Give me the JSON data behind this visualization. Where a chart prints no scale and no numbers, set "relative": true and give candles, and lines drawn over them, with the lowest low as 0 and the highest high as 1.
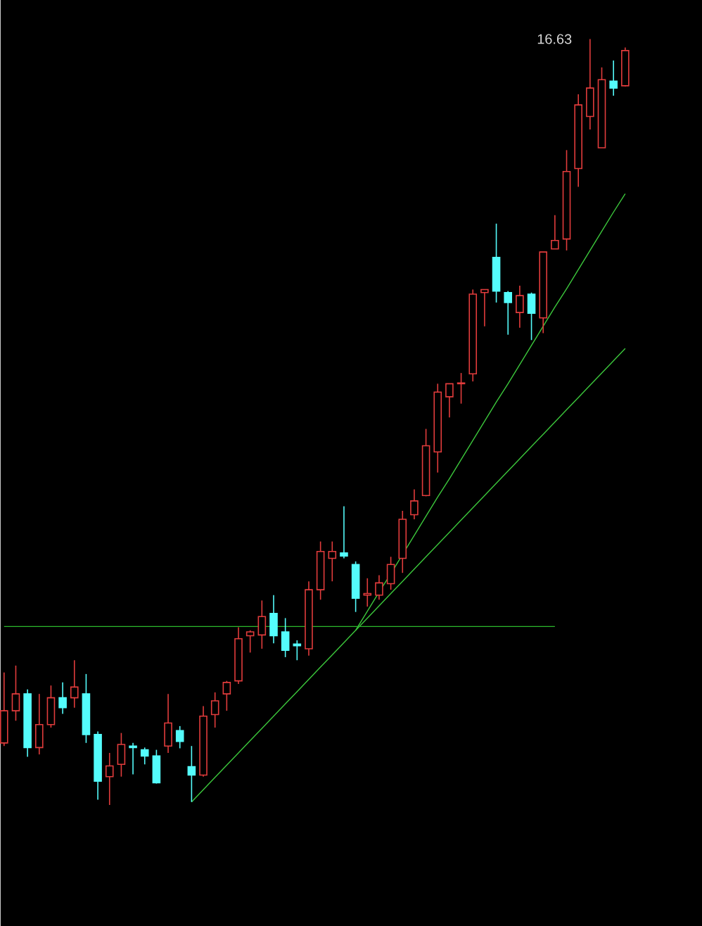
{
  "chart_data": {
    "type": "candlestick",
    "relative": true,
    "categories": [
      null,
      null,
      null,
      null,
      null,
      null,
      null,
      null,
      null,
      null,
      null,
      null,
      null,
      null,
      null,
      null,
      null,
      null,
      null,
      null,
      null,
      null,
      null,
      null,
      null,
      null,
      null,
      null,
      null,
      null,
      null,
      null,
      null,
      null,
      null,
      null,
      null,
      null,
      null,
      null,
      null,
      null,
      null,
      null,
      null,
      null,
      null,
      null,
      null,
      null,
      null,
      null,
      null,
      null
    ],
    "ohlc": [
      [
        0.081,
        0.173,
        0.077,
        0.123
      ],
      [
        0.123,
        0.182,
        0.11,
        0.145
      ],
      [
        0.145,
        0.151,
        0.063,
        0.075
      ],
      [
        0.075,
        0.145,
        0.066,
        0.105
      ],
      [
        0.105,
        0.156,
        0.101,
        0.14
      ],
      [
        0.14,
        0.16,
        0.119,
        0.127
      ],
      [
        0.14,
        0.189,
        0.127,
        0.154
      ],
      [
        0.145,
        0.171,
        0.081,
        0.092
      ],
      [
        0.092,
        0.096,
        0.007,
        0.031
      ],
      [
        0.037,
        0.068,
        0.0,
        0.051
      ],
      [
        0.053,
        0.094,
        0.037,
        0.079
      ],
      [
        0.077,
        0.081,
        0.04,
        0.075
      ],
      [
        0.072,
        0.075,
        0.053,
        0.064
      ],
      [
        0.064,
        0.072,
        0.028,
        0.029
      ],
      [
        0.077,
        0.145,
        0.068,
        0.107
      ],
      [
        0.097,
        0.103,
        0.074,
        0.083
      ],
      [
        0.05,
        0.077,
        0.004,
        0.039
      ],
      [
        0.039,
        0.129,
        0.037,
        0.116
      ],
      [
        0.118,
        0.147,
        0.101,
        0.136
      ],
      [
        0.145,
        0.162,
        0.123,
        0.16
      ],
      [
        0.162,
        0.232,
        0.158,
        0.217
      ],
      [
        0.221,
        0.228,
        0.199,
        0.226
      ],
      [
        0.222,
        0.267,
        0.204,
        0.246
      ],
      [
        0.25,
        0.274,
        0.211,
        0.221
      ],
      [
        0.226,
        0.244,
        0.193,
        0.202
      ],
      [
        0.21,
        0.215,
        0.189,
        0.208
      ],
      [
        0.204,
        0.292,
        0.195,
        0.281
      ],
      [
        0.281,
        0.344,
        0.268,
        0.331
      ],
      [
        0.322,
        0.344,
        0.292,
        0.331
      ],
      [
        0.329,
        0.39,
        0.322,
        0.325
      ],
      [
        0.314,
        0.318,
        0.252,
        0.27
      ],
      [
        0.274,
        0.296,
        0.259,
        0.276
      ],
      [
        0.274,
        0.3,
        0.268,
        0.29
      ],
      [
        0.289,
        0.324,
        0.281,
        0.314
      ],
      [
        0.322,
        0.384,
        0.303,
        0.373
      ],
      [
        0.379,
        0.412,
        0.373,
        0.397
      ],
      [
        0.404,
        0.491,
        0.403,
        0.469
      ],
      [
        0.461,
        0.55,
        0.434,
        0.539
      ],
      [
        0.533,
        0.55,
        0.506,
        0.55
      ],
      [
        0.55,
        0.564,
        0.524,
        0.551
      ],
      [
        0.563,
        0.673,
        0.553,
        0.667
      ],
      [
        0.669,
        0.673,
        0.625,
        0.673
      ],
      [
        0.715,
        0.759,
        0.656,
        0.671
      ],
      [
        0.669,
        0.671,
        0.614,
        0.656
      ],
      [
        0.643,
        0.678,
        0.623,
        0.665
      ],
      [
        0.667,
        0.669,
        0.607,
        0.642
      ],
      [
        0.636,
        0.722,
        0.616,
        0.722
      ],
      [
        0.726,
        0.77,
        0.726,
        0.737
      ],
      [
        0.739,
        0.855,
        0.724,
        0.827
      ],
      [
        0.831,
        0.928,
        0.807,
        0.914
      ],
      [
        0.899,
        1.0,
        0.882,
        0.936
      ],
      [
        0.858,
        0.963,
        0.858,
        0.947
      ],
      [
        0.945,
        0.972,
        0.926,
        0.936
      ],
      [
        0.939,
        0.989,
        0.938,
        0.985
      ]
    ],
    "colors": [
      "#e23c3c",
      "#e23c3c",
      "#54fcfc",
      "#e23c3c",
      "#e23c3c",
      "#54fcfc",
      "#e23c3c",
      "#54fcfc",
      "#54fcfc",
      "#e23c3c",
      "#e23c3c",
      "#54fcfc",
      "#54fcfc",
      "#54fcfc",
      "#e23c3c",
      "#54fcfc",
      "#54fcfc",
      "#e23c3c",
      "#e23c3c",
      "#e23c3c",
      "#e23c3c",
      "#e23c3c",
      "#e23c3c",
      "#54fcfc",
      "#54fcfc",
      "#54fcfc",
      "#e23c3c",
      "#e23c3c",
      "#e23c3c",
      "#54fcfc",
      "#54fcfc",
      "#e23c3c",
      "#e23c3c",
      "#e23c3c",
      "#e23c3c",
      "#e23c3c",
      "#e23c3c",
      "#e23c3c",
      "#e23c3c",
      "#e23c3c",
      "#e23c3c",
      "#e23c3c",
      "#54fcfc",
      "#54fcfc",
      "#e23c3c",
      "#54fcfc",
      "#e23c3c",
      "#e23c3c",
      "#e23c3c",
      "#e23c3c",
      "#e23c3c",
      "#e23c3c",
      "#54fcfc",
      "#e23c3c"
    ],
    "series": [
      {
        "type": "line",
        "color": "#3cc83c",
        "values": [
          null,
          null,
          null,
          null,
          null,
          null,
          null,
          null,
          null,
          null,
          null,
          null,
          null,
          null,
          null,
          null,
          0.004,
          0.02,
          0.036,
          0.052,
          0.068,
          0.084,
          0.1,
          0.116,
          0.132,
          0.148,
          0.164,
          0.18,
          0.196,
          0.212,
          0.228,
          0.244,
          0.26,
          0.276,
          0.292,
          0.308,
          0.324,
          0.34,
          0.356,
          0.372,
          0.388,
          0.404,
          0.42,
          0.436,
          0.452,
          0.468,
          0.484,
          0.5,
          0.516,
          0.532,
          0.548,
          0.564,
          0.58,
          0.596
        ]
      },
      {
        "type": "line",
        "color": "#3cc83c",
        "values": [
          null,
          null,
          null,
          null,
          null,
          null,
          null,
          null,
          null,
          null,
          null,
          null,
          null,
          null,
          null,
          null,
          null,
          null,
          null,
          null,
          null,
          null,
          null,
          null,
          null,
          null,
          null,
          null,
          null,
          null,
          0.228,
          0.253,
          0.278,
          0.302,
          0.327,
          0.352,
          0.377,
          0.402,
          0.426,
          0.451,
          0.476,
          0.501,
          0.526,
          0.55,
          0.575,
          0.6,
          0.625,
          0.65,
          0.674,
          0.699,
          0.724,
          0.749,
          0.774,
          0.798
        ]
      },
      {
        "type": "line",
        "color": "#2cb82c",
        "values": [
          0.233,
          0.233,
          0.233,
          0.233,
          0.233,
          0.233,
          0.233,
          0.233,
          0.233,
          0.233,
          0.233,
          0.233,
          0.233,
          0.233,
          0.233,
          0.233,
          0.233,
          0.233,
          0.233,
          0.233,
          0.233,
          0.233,
          0.233,
          0.233,
          0.233,
          0.233,
          0.233,
          0.233,
          0.233,
          0.233,
          0.233,
          0.233,
          0.233,
          0.233,
          0.233,
          0.233,
          0.233,
          0.233,
          0.233,
          0.233,
          0.233,
          0.233,
          0.233,
          0.233,
          0.233,
          0.233,
          0.233,
          0.233,
          null,
          null,
          null,
          null,
          null,
          null
        ]
      }
    ],
    "annotations": [
      "16.63"
    ]
  }
}
